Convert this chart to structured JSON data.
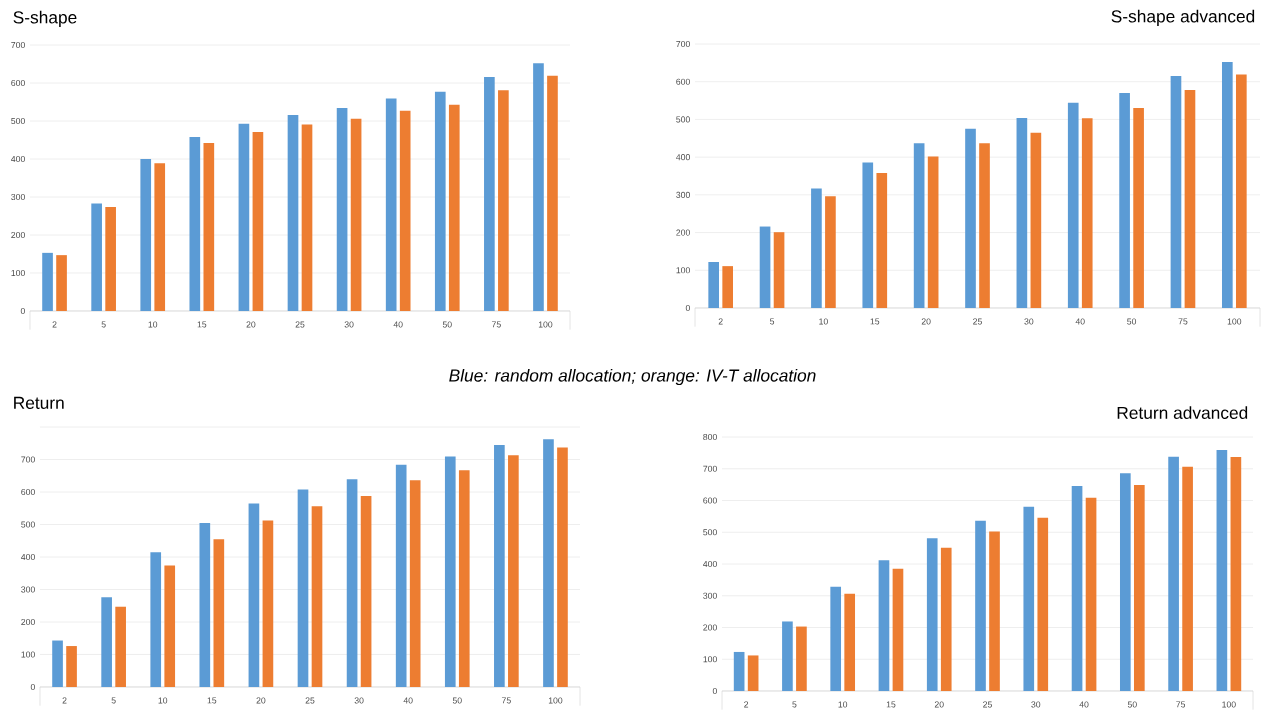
{
  "chart_data": [
    {
      "type": "bar",
      "title": "S-shape",
      "categories": [
        "2",
        "5",
        "10",
        "15",
        "20",
        "25",
        "30",
        "40",
        "50",
        "75",
        "100"
      ],
      "ylim": [
        0,
        700
      ],
      "yticks": [
        0,
        100,
        200,
        300,
        400,
        500,
        600,
        700
      ],
      "grid": "y",
      "annotations": [
        "Blue: random allocation; orange: IV-T allocation"
      ],
      "series": [
        {
          "color": "#5b9bd5",
          "values": [
            153,
            283,
            400,
            458,
            493,
            516,
            534,
            559,
            577,
            616,
            652
          ]
        },
        {
          "color": "#ed7d31",
          "values": [
            147,
            274,
            389,
            442,
            471,
            491,
            506,
            527,
            543,
            581,
            619
          ]
        }
      ]
    },
    {
      "type": "bar",
      "title": "S-shape advanced",
      "categories": [
        "2",
        "5",
        "10",
        "15",
        "20",
        "25",
        "30",
        "40",
        "50",
        "75",
        "100"
      ],
      "ylim": [
        0,
        700
      ],
      "yticks": [
        0,
        100,
        200,
        300,
        400,
        500,
        600,
        700
      ],
      "grid": "y",
      "series": [
        {
          "color": "#5b9bd5",
          "values": [
            122,
            216,
            317,
            386,
            437,
            475,
            504,
            544,
            570,
            615,
            652
          ]
        },
        {
          "color": "#ed7d31",
          "values": [
            111,
            201,
            296,
            358,
            402,
            437,
            465,
            503,
            530,
            578,
            619
          ]
        }
      ]
    },
    {
      "type": "bar",
      "title": "Return",
      "categories": [
        "2",
        "5",
        "10",
        "15",
        "20",
        "25",
        "30",
        "40",
        "50",
        "75",
        "100"
      ],
      "ylim": [
        0,
        800
      ],
      "yticks": [
        0,
        100,
        200,
        300,
        400,
        500,
        600,
        700,
        {
          "value": 800,
          "label": null
        }
      ],
      "grid": "y",
      "series": [
        {
          "color": "#5b9bd5",
          "values": [
            143,
            276,
            415,
            505,
            565,
            608,
            639,
            684,
            709,
            745,
            762
          ]
        },
        {
          "color": "#ed7d31",
          "values": [
            126,
            247,
            374,
            455,
            512,
            556,
            588,
            636,
            667,
            713,
            737
          ]
        }
      ]
    },
    {
      "type": "bar",
      "title": "Return advanced",
      "categories": [
        "2",
        "5",
        "10",
        "15",
        "20",
        "25",
        "30",
        "40",
        "50",
        "75",
        "100"
      ],
      "ylim": [
        0,
        800
      ],
      "yticks": [
        0,
        100,
        200,
        300,
        400,
        500,
        600,
        700,
        800
      ],
      "grid": "y",
      "series": [
        {
          "color": "#5b9bd5",
          "values": [
            123,
            219,
            328,
            412,
            481,
            536,
            580,
            646,
            686,
            738,
            759
          ]
        },
        {
          "color": "#ed7d31",
          "values": [
            112,
            203,
            306,
            385,
            451,
            502,
            546,
            609,
            649,
            706,
            737
          ]
        }
      ]
    }
  ]
}
